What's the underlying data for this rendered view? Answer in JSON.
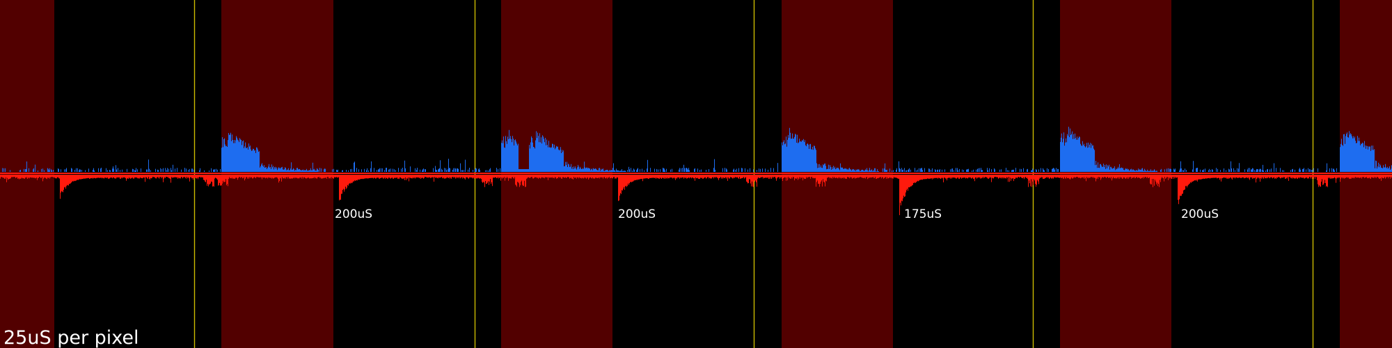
{
  "chart_data": {
    "type": "area",
    "scale_label": "25uS per pixel",
    "colors": {
      "background": "#000000",
      "shaded_region": "#520000",
      "marker_line": "#ccbb00",
      "upper_signal": "#1e6df0",
      "lower_signal": "#ff1a0d",
      "baseline": "#ff1a0d",
      "label_text": "#ffffff"
    },
    "interval_labels": [
      "200uS",
      "200uS",
      "175uS",
      "200uS"
    ]
  }
}
